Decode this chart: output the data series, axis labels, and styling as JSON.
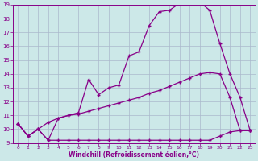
{
  "xlabel": "Windchill (Refroidissement éolien,°C)",
  "background_color": "#cce8e8",
  "grid_color": "#aab8cc",
  "line_color": "#880088",
  "xlim": [
    -0.5,
    23.5
  ],
  "ylim": [
    9,
    19
  ],
  "xticks": [
    0,
    1,
    2,
    3,
    4,
    5,
    6,
    7,
    8,
    9,
    10,
    11,
    12,
    13,
    14,
    15,
    16,
    17,
    18,
    19,
    20,
    21,
    22,
    23
  ],
  "yticks": [
    9,
    10,
    11,
    12,
    13,
    14,
    15,
    16,
    17,
    18,
    19
  ],
  "line1_x": [
    0,
    1,
    2,
    3,
    4,
    5,
    6,
    7,
    8,
    9,
    10,
    11,
    12,
    13,
    14,
    15,
    16,
    17,
    18,
    19,
    20,
    21,
    22,
    23
  ],
  "line1_y": [
    10.4,
    9.5,
    10.0,
    9.2,
    9.2,
    9.2,
    9.2,
    9.2,
    9.2,
    9.2,
    9.2,
    9.2,
    9.2,
    9.2,
    9.2,
    9.2,
    9.2,
    9.2,
    9.2,
    9.2,
    9.5,
    9.8,
    9.9,
    9.9
  ],
  "line2_x": [
    0,
    1,
    2,
    3,
    4,
    5,
    6,
    7,
    8,
    9,
    10,
    11,
    12,
    13,
    14,
    15,
    16,
    17,
    18,
    19,
    20,
    21,
    22,
    23
  ],
  "line2_y": [
    10.4,
    9.5,
    10.0,
    10.5,
    10.8,
    11.0,
    11.1,
    11.3,
    11.5,
    11.7,
    11.9,
    12.1,
    12.3,
    12.6,
    12.8,
    13.1,
    13.4,
    13.7,
    14.0,
    14.1,
    14.0,
    12.3,
    9.9,
    9.9
  ],
  "line3_x": [
    0,
    1,
    2,
    3,
    4,
    5,
    6,
    7,
    8,
    9,
    10,
    11,
    12,
    13,
    14,
    15,
    16,
    17,
    18,
    19,
    20,
    21,
    22,
    23
  ],
  "line3_y": [
    10.4,
    9.5,
    10.0,
    9.2,
    10.8,
    11.0,
    11.2,
    13.6,
    12.5,
    13.0,
    13.2,
    15.3,
    15.6,
    17.5,
    18.5,
    18.6,
    19.1,
    19.2,
    19.2,
    18.6,
    16.2,
    14.0,
    12.3,
    9.9
  ]
}
